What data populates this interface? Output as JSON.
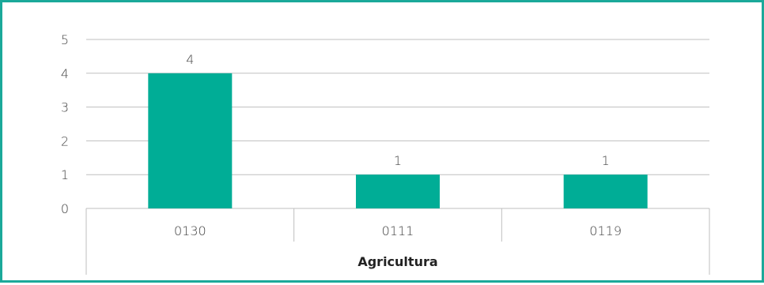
{
  "chart_data": {
    "type": "bar",
    "categories": [
      "0130",
      "0111",
      "0119"
    ],
    "values": [
      4,
      1,
      1
    ],
    "group_label": "Agricultura",
    "ylim": [
      0,
      5
    ],
    "yticks": [
      "0",
      "1",
      "2",
      "3",
      "4",
      "5"
    ],
    "grid": true,
    "data_labels": [
      "4",
      "1",
      "1"
    ],
    "bar_color": "#00ad96",
    "border_color": "#1ba99a",
    "grid_color": "#bfbfbf"
  }
}
